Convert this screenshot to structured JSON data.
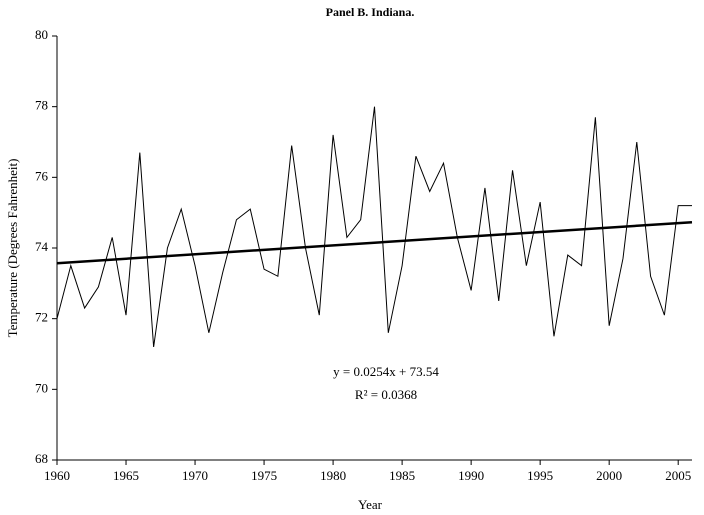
{
  "chart_data": {
    "type": "line",
    "title": "Panel B.  Indiana.",
    "xlabel": "Year",
    "ylabel": "Temperature (Degrees Fahrenheit)",
    "x": [
      1960,
      1961,
      1962,
      1963,
      1964,
      1965,
      1966,
      1967,
      1968,
      1969,
      1970,
      1971,
      1972,
      1973,
      1974,
      1975,
      1976,
      1977,
      1978,
      1979,
      1980,
      1981,
      1982,
      1983,
      1984,
      1985,
      1986,
      1987,
      1988,
      1989,
      1990,
      1991,
      1992,
      1993,
      1994,
      1995,
      1996,
      1997,
      1998,
      1999,
      2000,
      2001,
      2002,
      2003,
      2004,
      2005,
      2006
    ],
    "series": [
      {
        "color": "#000000",
        "values": [
          72.0,
          73.5,
          72.3,
          72.9,
          74.3,
          72.1,
          76.7,
          71.2,
          74.0,
          75.1,
          73.5,
          71.6,
          73.3,
          74.8,
          75.1,
          73.4,
          73.2,
          76.9,
          74.0,
          72.1,
          77.2,
          74.3,
          74.8,
          78.0,
          71.6,
          73.5,
          76.6,
          75.6,
          76.4,
          74.3,
          72.8,
          75.7,
          72.5,
          76.2,
          73.5,
          75.3,
          71.5,
          73.8,
          73.5,
          77.7,
          71.8,
          73.7,
          77.0,
          73.2,
          72.1,
          75.2,
          75.2
        ]
      }
    ],
    "trend": {
      "x": [
        1960,
        2006
      ],
      "values": [
        73.57,
        74.73
      ],
      "color": "#000000"
    },
    "annotations": [
      "y = 0.0254x + 73.54",
      "R² = 0.0368"
    ],
    "xlim": [
      1960,
      2006
    ],
    "xticks": [
      1960,
      1965,
      1970,
      1975,
      1980,
      1985,
      1990,
      1995,
      2000,
      2005
    ],
    "ylim": [
      68,
      80
    ],
    "yticks": [
      68,
      70,
      72,
      74,
      76,
      78,
      80
    ],
    "grid": false
  }
}
